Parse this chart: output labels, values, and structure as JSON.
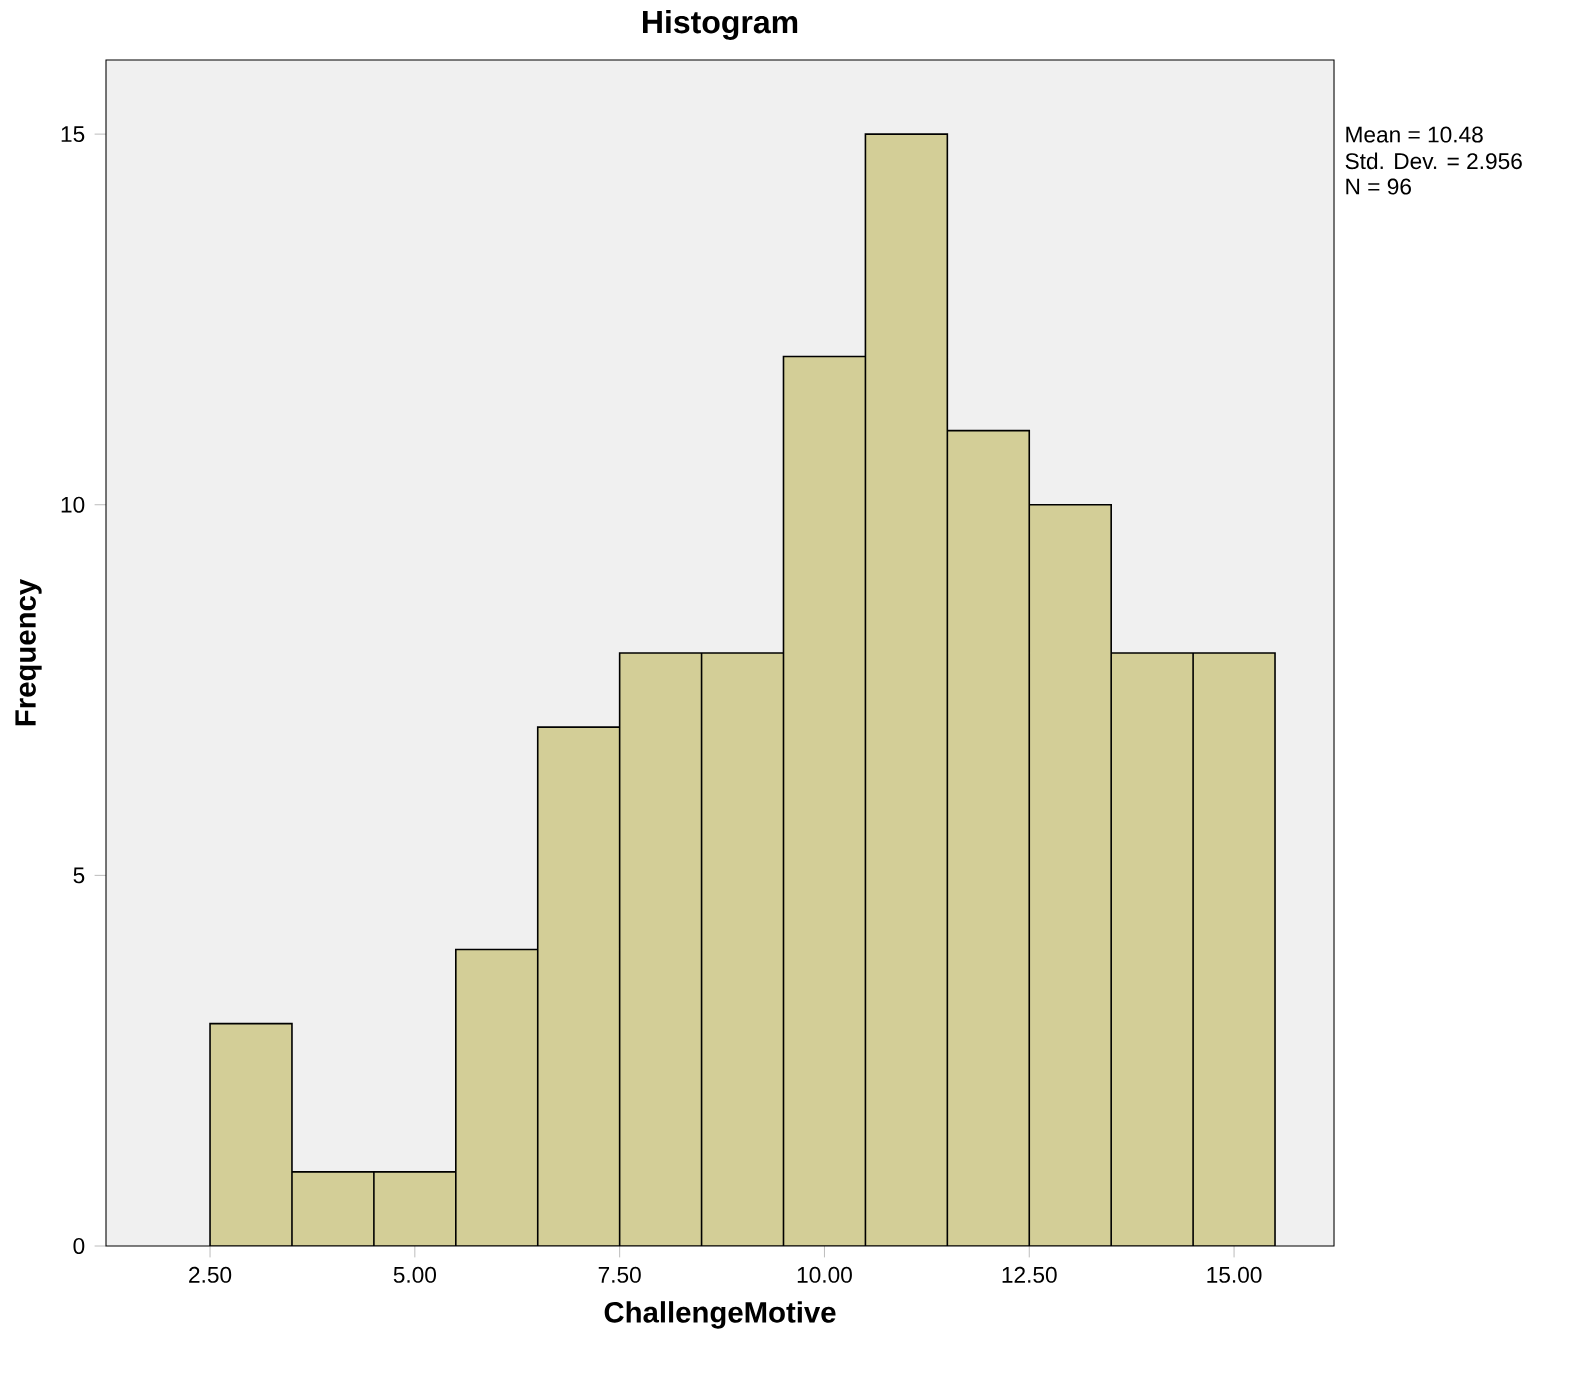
{
  "chart_data": {
    "type": "histogram",
    "title": "Histogram",
    "xlabel": "ChallengeMotive",
    "ylabel": "Frequency",
    "bins": [
      2.5,
      3.5,
      4.5,
      5.5,
      6.5,
      7.5,
      8.5,
      9.5,
      10.5,
      11.5,
      12.5,
      13.5,
      14.5,
      15.5
    ],
    "values": [
      3,
      1,
      1,
      4,
      7,
      8,
      8,
      12,
      15,
      11,
      10,
      8,
      8
    ],
    "color": "#d3ce97",
    "xlim": [
      1.23,
      16.22
    ],
    "ylim": [
      0,
      16
    ],
    "xticks": [
      {
        "value": 2.5,
        "label": "2.50"
      },
      {
        "value": 5,
        "label": "5.00"
      },
      {
        "value": 7.5,
        "label": "7.50"
      },
      {
        "value": 10,
        "label": "10.00"
      },
      {
        "value": 12.5,
        "label": "12.50"
      },
      {
        "value": 15,
        "label": "15.00"
      }
    ],
    "yticks": [
      0,
      5,
      10,
      15
    ],
    "grid": false,
    "annotations": [
      "Mean = 10.48",
      "Std. Dev. = 2.956",
      "N = 96"
    ]
  }
}
